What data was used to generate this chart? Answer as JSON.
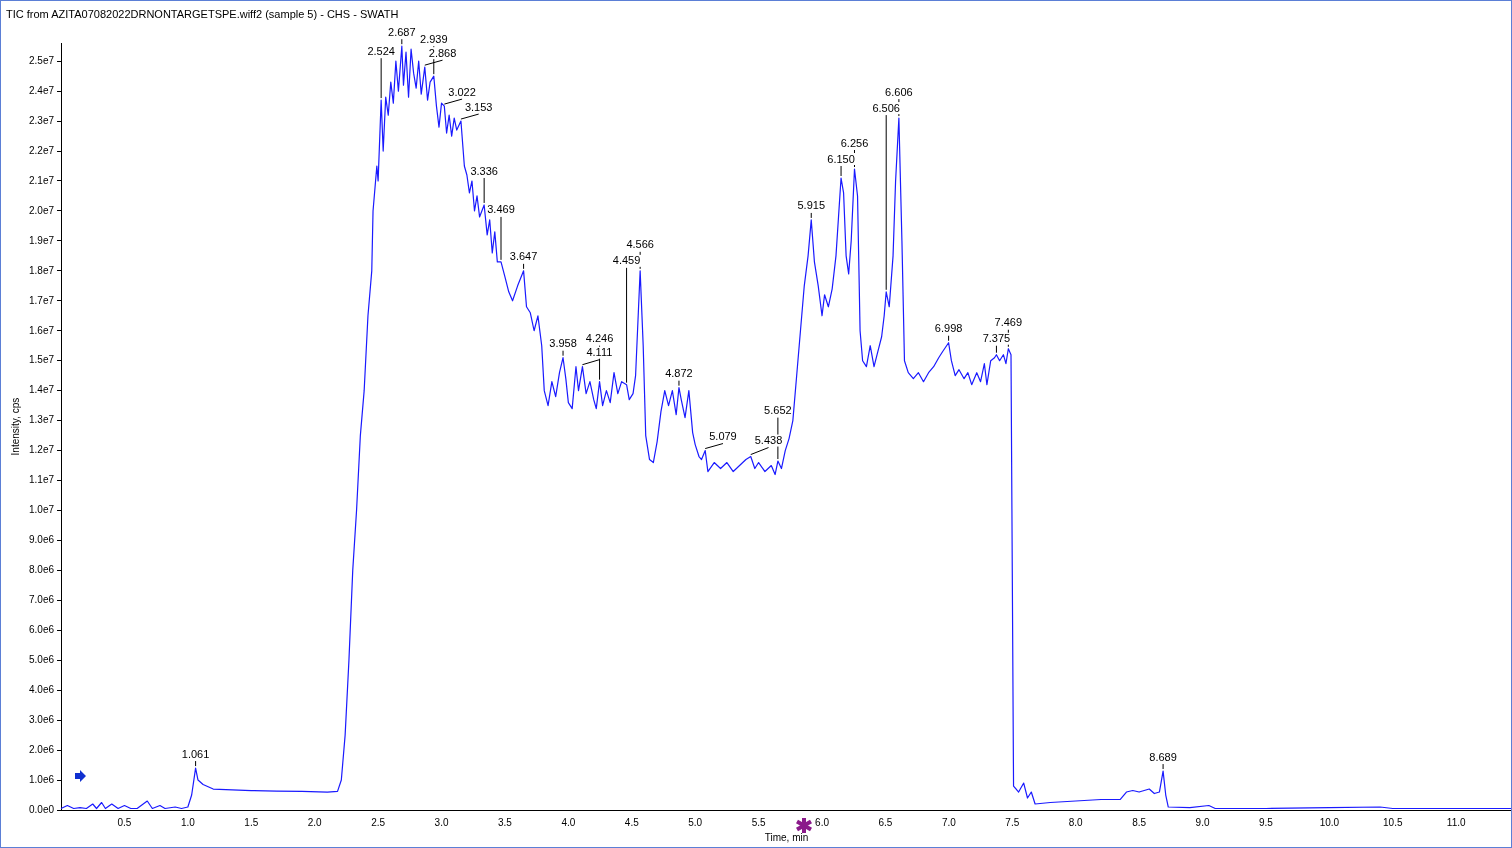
{
  "chart_data": {
    "type": "line",
    "title": "TIC from AZITA07082022DRNONTARGETSPE.wiff2 (sample 5) - CHS - SWATH",
    "xlabel": "Time, min",
    "ylabel": "Intensity, cps",
    "color": "#1a1aff",
    "marker": "none",
    "grid": false,
    "legend": false,
    "x": [
      0,
      0.05,
      0.1,
      0.15,
      0.2,
      0.25,
      0.28,
      0.32,
      0.35,
      0.4,
      0.45,
      0.5,
      0.55,
      0.6,
      0.68,
      0.72,
      0.78,
      0.82,
      0.9,
      0.95,
      1.0,
      1.03,
      1.061,
      1.08,
      1.12,
      1.2,
      1.3,
      1.5,
      1.7,
      1.9,
      2.1,
      2.18,
      2.21,
      2.24,
      2.27,
      2.3,
      2.33,
      2.36,
      2.39,
      2.42,
      2.45,
      2.46,
      2.49,
      2.5,
      2.524,
      2.54,
      2.56,
      2.58,
      2.6,
      2.62,
      2.64,
      2.66,
      2.687,
      2.7,
      2.72,
      2.74,
      2.76,
      2.78,
      2.8,
      2.82,
      2.84,
      2.868,
      2.89,
      2.91,
      2.939,
      2.96,
      2.98,
      3.0,
      3.022,
      3.04,
      3.06,
      3.08,
      3.1,
      3.12,
      3.153,
      3.18,
      3.2,
      3.22,
      3.24,
      3.26,
      3.28,
      3.3,
      3.336,
      3.36,
      3.38,
      3.4,
      3.42,
      3.44,
      3.469,
      3.5,
      3.53,
      3.56,
      3.6,
      3.647,
      3.67,
      3.7,
      3.73,
      3.76,
      3.79,
      3.81,
      3.84,
      3.87,
      3.9,
      3.93,
      3.958,
      3.98,
      4.0,
      4.03,
      4.06,
      4.08,
      4.111,
      4.14,
      4.17,
      4.2,
      4.22,
      4.246,
      4.27,
      4.3,
      4.33,
      4.36,
      4.39,
      4.42,
      4.459,
      4.48,
      4.51,
      4.53,
      4.566,
      4.59,
      4.61,
      4.64,
      4.67,
      4.7,
      4.73,
      4.76,
      4.79,
      4.82,
      4.85,
      4.872,
      4.89,
      4.92,
      4.95,
      4.98,
      5.0,
      5.03,
      5.05,
      5.079,
      5.1,
      5.15,
      5.2,
      5.25,
      5.3,
      5.35,
      5.4,
      5.438,
      5.47,
      5.5,
      5.55,
      5.6,
      5.63,
      5.652,
      5.68,
      5.71,
      5.74,
      5.77,
      5.8,
      5.83,
      5.86,
      5.89,
      5.915,
      5.94,
      5.97,
      6.0,
      6.02,
      6.05,
      6.08,
      6.11,
      6.13,
      6.15,
      6.17,
      6.19,
      6.21,
      6.23,
      6.256,
      6.28,
      6.3,
      6.32,
      6.35,
      6.38,
      6.41,
      6.44,
      6.47,
      6.49,
      6.506,
      6.53,
      6.56,
      6.58,
      6.606,
      6.63,
      6.65,
      6.68,
      6.72,
      6.76,
      6.8,
      6.84,
      6.88,
      6.92,
      6.95,
      6.998,
      7.02,
      7.05,
      7.08,
      7.12,
      7.15,
      7.18,
      7.22,
      7.25,
      7.28,
      7.3,
      7.33,
      7.36,
      7.375,
      7.4,
      7.43,
      7.45,
      7.469,
      7.49,
      7.5,
      7.51,
      7.55,
      7.59,
      7.62,
      7.65,
      7.68,
      7.8,
      8.0,
      8.2,
      8.35,
      8.4,
      8.45,
      8.5,
      8.58,
      8.62,
      8.66,
      8.689,
      8.71,
      8.73,
      8.9,
      9.05,
      9.1,
      9.5,
      10.0,
      10.4,
      10.5,
      11.0,
      11.44
    ],
    "values": [
      50000.0,
      150000.0,
      50000.0,
      80000.0,
      50000.0,
      200000.0,
      50000.0,
      250000.0,
      50000.0,
      200000.0,
      50000.0,
      150000.0,
      50000.0,
      50000.0,
      300000.0,
      50000.0,
      150000.0,
      50000.0,
      100000.0,
      50000.0,
      100000.0,
      500000.0,
      1400000.0,
      1000000.0,
      850000.0,
      700000.0,
      680000.0,
      650000.0,
      630000.0,
      620000.0,
      600000.0,
      620000.0,
      1000000.0,
      2500000.0,
      5000000.0,
      8000000.0,
      10000000.0,
      12500000.0,
      14000000.0,
      16500000.0,
      18000000.0,
      20000000.0,
      21500000.0,
      21000000.0,
      23700000.0,
      22000000.0,
      23800000.0,
      23200000.0,
      24300000.0,
      23600000.0,
      25000000.0,
      24000000.0,
      25500000.0,
      24200000.0,
      25300000.0,
      23800000.0,
      25400000.0,
      24600000.0,
      24100000.0,
      25000000.0,
      23900000.0,
      24800000.0,
      23700000.0,
      24300000.0,
      24500000.0,
      23500000.0,
      22800000.0,
      23600000.0,
      23500000.0,
      22600000.0,
      23200000.0,
      22500000.0,
      23100000.0,
      22700000.0,
      23000000.0,
      21500000.0,
      21200000.0,
      20600000.0,
      21000000.0,
      20000000.0,
      20500000.0,
      19800000.0,
      20200000.0,
      19200000.0,
      19700000.0,
      18600000.0,
      19300000.0,
      18300000.0,
      18300000.0,
      17800000.0,
      17300000.0,
      17000000.0,
      17500000.0,
      18000000.0,
      16800000.0,
      16600000.0,
      16000000.0,
      16500000.0,
      15500000.0,
      14000000.0,
      13500000.0,
      14300000.0,
      13800000.0,
      14600000.0,
      15100000.0,
      14400000.0,
      13600000.0,
      13400000.0,
      14800000.0,
      14000000.0,
      14800000.0,
      13900000.0,
      14300000.0,
      13700000.0,
      13400000.0,
      14300000.0,
      13500000.0,
      14000000.0,
      13600000.0,
      14600000.0,
      13900000.0,
      14300000.0,
      14200000.0,
      13700000.0,
      13900000.0,
      14500000.0,
      18000000.0,
      15500000.0,
      12500000.0,
      11700000.0,
      11600000.0,
      12300000.0,
      13300000.0,
      14000000.0,
      13500000.0,
      14000000.0,
      13200000.0,
      14100000.0,
      13700000.0,
      13100000.0,
      14000000.0,
      12600000.0,
      12200000.0,
      11800000.0,
      11700000.0,
      12000000.0,
      11300000.0,
      11600000.0,
      11400000.0,
      11600000.0,
      11300000.0,
      11500000.0,
      11700000.0,
      11800000.0,
      11400000.0,
      11600000.0,
      11300000.0,
      11500000.0,
      11200000.0,
      11650000.0,
      11400000.0,
      12000000.0,
      12400000.0,
      13000000.0,
      14500000.0,
      16000000.0,
      17500000.0,
      18500000.0,
      19700000.0,
      18300000.0,
      17500000.0,
      16500000.0,
      17200000.0,
      16800000.0,
      17400000.0,
      18500000.0,
      19800000.0,
      21100000.0,
      20600000.0,
      18500000.0,
      17900000.0,
      19000000.0,
      21400000.0,
      20500000.0,
      16000000.0,
      15000000.0,
      14800000.0,
      15500000.0,
      14800000.0,
      15300000.0,
      15800000.0,
      16500000.0,
      17300000.0,
      16800000.0,
      18500000.0,
      21000000.0,
      23100000.0,
      19000000.0,
      15000000.0,
      14600000.0,
      14400000.0,
      14600000.0,
      14300000.0,
      14600000.0,
      14800000.0,
      15100000.0,
      15300000.0,
      15600000.0,
      15000000.0,
      14500000.0,
      14700000.0,
      14400000.0,
      14600000.0,
      14200000.0,
      14600000.0,
      14300000.0,
      14900000.0,
      14200000.0,
      15000000.0,
      15100000.0,
      15200000.0,
      15000000.0,
      15200000.0,
      14900000.0,
      15400000.0,
      15200000.0,
      8000000.0,
      800000.0,
      600000.0,
      900000.0,
      400000.0,
      600000.0,
      200000.0,
      250000.0,
      300000.0,
      350000.0,
      350000.0,
      600000.0,
      650000.0,
      600000.0,
      700000.0,
      550000.0,
      600000.0,
      1300000.0,
      500000.0,
      100000.0,
      80000.0,
      150000.0,
      50000.0,
      50000.0,
      80000.0,
      100000.0,
      50000.0,
      50000.0,
      50000.0
    ],
    "xlim": [
      0,
      11.44
    ],
    "xticks": [
      {
        "value": 0.5,
        "label": "0.5"
      },
      {
        "value": 1,
        "label": "1.0"
      },
      {
        "value": 1.5,
        "label": "1.5"
      },
      {
        "value": 2,
        "label": "2.0"
      },
      {
        "value": 2.5,
        "label": "2.5"
      },
      {
        "value": 3,
        "label": "3.0"
      },
      {
        "value": 3.5,
        "label": "3.5"
      },
      {
        "value": 4,
        "label": "4.0"
      },
      {
        "value": 4.5,
        "label": "4.5"
      },
      {
        "value": 5,
        "label": "5.0"
      },
      {
        "value": 5.5,
        "label": "5.5"
      },
      {
        "value": 6,
        "label": "6.0"
      },
      {
        "value": 6.5,
        "label": "6.5"
      },
      {
        "value": 7,
        "label": "7.0"
      },
      {
        "value": 7.5,
        "label": "7.5"
      },
      {
        "value": 8,
        "label": "8.0"
      },
      {
        "value": 8.5,
        "label": "8.5"
      },
      {
        "value": 9,
        "label": "9.0"
      },
      {
        "value": 9.5,
        "label": "9.5"
      },
      {
        "value": 10,
        "label": "10.0"
      },
      {
        "value": 10.5,
        "label": "10.5"
      },
      {
        "value": 11,
        "label": "11.0"
      }
    ],
    "ylim": [
      0,
      25600000.0
    ],
    "yticks": [
      {
        "value": 0,
        "label": "0.0e0"
      },
      {
        "value": 1000000.0,
        "label": "1.0e6"
      },
      {
        "value": 2000000.0,
        "label": "2.0e6"
      },
      {
        "value": 3000000.0,
        "label": "3.0e6"
      },
      {
        "value": 4000000.0,
        "label": "4.0e6"
      },
      {
        "value": 5000000.0,
        "label": "5.0e6"
      },
      {
        "value": 6000000.0,
        "label": "6.0e6"
      },
      {
        "value": 7000000.0,
        "label": "7.0e6"
      },
      {
        "value": 8000000.0,
        "label": "8.0e6"
      },
      {
        "value": 9000000.0,
        "label": "9.0e6"
      },
      {
        "value": 10000000.0,
        "label": "1.0e7"
      },
      {
        "value": 11000000.0,
        "label": "1.1e7"
      },
      {
        "value": 12000000.0,
        "label": "1.2e7"
      },
      {
        "value": 13000000.0,
        "label": "1.3e7"
      },
      {
        "value": 14000000.0,
        "label": "1.4e7"
      },
      {
        "value": 15000000.0,
        "label": "1.5e7"
      },
      {
        "value": 16000000.0,
        "label": "1.6e7"
      },
      {
        "value": 17000000.0,
        "label": "1.7e7"
      },
      {
        "value": 18000000.0,
        "label": "1.8e7"
      },
      {
        "value": 19000000.0,
        "label": "1.9e7"
      },
      {
        "value": 20000000.0,
        "label": "2.0e7"
      },
      {
        "value": 21000000.0,
        "label": "2.1e7"
      },
      {
        "value": 22000000.0,
        "label": "2.2e7"
      },
      {
        "value": 23000000.0,
        "label": "2.3e7"
      },
      {
        "value": 24000000.0,
        "label": "2.4e7"
      },
      {
        "value": 25000000.0,
        "label": "2.5e7"
      }
    ],
    "annotations": [
      {
        "text": "1.061",
        "x": 1.061,
        "y": 1400000.0
      },
      {
        "text": "2.524",
        "x": 2.524,
        "y": 23700000.0
      },
      {
        "text": "2.687",
        "x": 2.687,
        "y": 25500000.0
      },
      {
        "text": "2.868",
        "x": 2.868,
        "y": 24800000.0
      },
      {
        "text": "2.939",
        "x": 2.939,
        "y": 24500000.0
      },
      {
        "text": "3.022",
        "x": 3.022,
        "y": 23500000.0
      },
      {
        "text": "3.153",
        "x": 3.153,
        "y": 23000000.0
      },
      {
        "text": "3.336",
        "x": 3.336,
        "y": 20200000.0
      },
      {
        "text": "3.469",
        "x": 3.469,
        "y": 18300000.0
      },
      {
        "text": "3.647",
        "x": 3.647,
        "y": 18000000.0
      },
      {
        "text": "3.958",
        "x": 3.958,
        "y": 15100000.0
      },
      {
        "text": "4.111",
        "x": 4.111,
        "y": 14800000.0
      },
      {
        "text": "4.246",
        "x": 4.246,
        "y": 14300000.0
      },
      {
        "text": "4.459",
        "x": 4.459,
        "y": 14200000.0
      },
      {
        "text": "4.566",
        "x": 4.566,
        "y": 18000000.0
      },
      {
        "text": "4.872",
        "x": 4.872,
        "y": 14100000.0
      },
      {
        "text": "5.079",
        "x": 5.079,
        "y": 12000000.0
      },
      {
        "text": "5.438",
        "x": 5.438,
        "y": 11800000.0
      },
      {
        "text": "5.652",
        "x": 5.652,
        "y": 11650000.0
      },
      {
        "text": "5.915",
        "x": 5.915,
        "y": 19700000.0
      },
      {
        "text": "6.150",
        "x": 6.15,
        "y": 21100000.0
      },
      {
        "text": "6.256",
        "x": 6.256,
        "y": 21400000.0
      },
      {
        "text": "6.506",
        "x": 6.506,
        "y": 17300000.0
      },
      {
        "text": "6.606",
        "x": 6.606,
        "y": 23100000.0
      },
      {
        "text": "6.998",
        "x": 6.998,
        "y": 15600000.0
      },
      {
        "text": "7.375",
        "x": 7.375,
        "y": 15200000.0
      },
      {
        "text": "7.469",
        "x": 7.469,
        "y": 15400000.0
      },
      {
        "text": "8.689",
        "x": 8.689,
        "y": 1300000.0
      }
    ]
  }
}
